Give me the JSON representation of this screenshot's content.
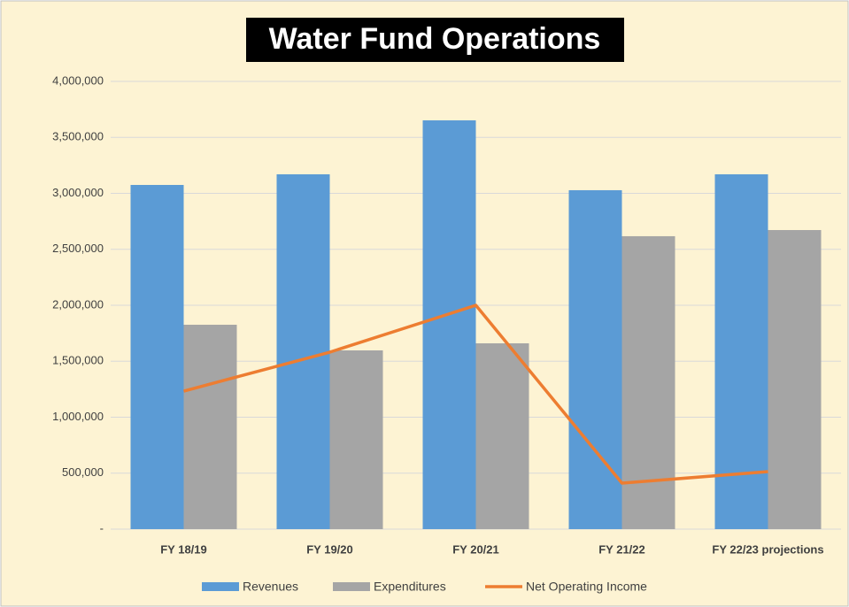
{
  "chart_data": {
    "type": "bar",
    "title": "Water Fund Operations",
    "categories": [
      "FY 18/19",
      "FY 19/20",
      "FY 20/21",
      "FY 21/22",
      "FY 22/23 projections"
    ],
    "series": [
      {
        "name": "Revenues",
        "type": "bar",
        "color": "#5b9bd5",
        "values": [
          3075000,
          3170000,
          3652000,
          3028000,
          3170000
        ]
      },
      {
        "name": "Expenditures",
        "type": "bar",
        "color": "#a5a5a5",
        "values": [
          1826000,
          1597000,
          1660000,
          2617000,
          2672000
        ]
      },
      {
        "name": "Net Operating Income",
        "type": "line",
        "color": "#ed7d31",
        "values": [
          1233000,
          1581000,
          2000000,
          411000,
          514000
        ]
      }
    ],
    "ylim": [
      0,
      4000000
    ],
    "yticks": [
      {
        "value": 0,
        "label": "-"
      },
      {
        "value": 500000,
        "label": "500,000"
      },
      {
        "value": 1000000,
        "label": "1,000,000"
      },
      {
        "value": 1500000,
        "label": "1,500,000"
      },
      {
        "value": 2000000,
        "label": "2,000,000"
      },
      {
        "value": 2500000,
        "label": "2,500,000"
      },
      {
        "value": 3000000,
        "label": "3,000,000"
      },
      {
        "value": 3500000,
        "label": "3,500,000"
      },
      {
        "value": 4000000,
        "label": "4,000,000"
      }
    ],
    "grid": true,
    "legend": "bottom"
  }
}
